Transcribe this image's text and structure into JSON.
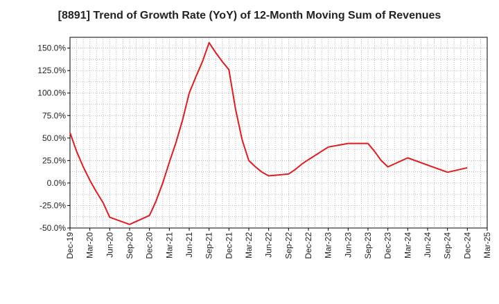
{
  "chart_data": {
    "type": "line",
    "title": "[8891]  Trend of Growth Rate (YoY) of 12-Month Moving Sum of Revenues",
    "xlabel": "",
    "ylabel": "",
    "x_ticks": [
      "Dec-19",
      "Mar-20",
      "Jun-20",
      "Sep-20",
      "Dec-20",
      "Mar-21",
      "Jun-21",
      "Sep-21",
      "Dec-21",
      "Mar-22",
      "Jun-22",
      "Sep-22",
      "Dec-22",
      "Mar-23",
      "Jun-23",
      "Sep-23",
      "Dec-23",
      "Mar-24",
      "Jun-24",
      "Sep-24",
      "Dec-24",
      "Mar-25"
    ],
    "y_ticks": [
      "150.0%",
      "125.0%",
      "100.0%",
      "75.0%",
      "50.0%",
      "25.0%",
      "0.0%",
      "-25.0%",
      "-50.0%"
    ],
    "y_tick_values": [
      150,
      125,
      100,
      75,
      50,
      25,
      0,
      -25,
      -50
    ],
    "ylim": [
      -50,
      162
    ],
    "y_unit": "%",
    "grid": true,
    "line_color": "#e31a1c",
    "series": [
      {
        "x": [
          "Dec-19",
          "Jan-20",
          "Feb-20",
          "Mar-20",
          "Apr-20",
          "May-20",
          "Jun-20",
          "Sep-20",
          "Dec-20",
          "Jan-21",
          "Feb-21",
          "Mar-21",
          "Apr-21",
          "May-21",
          "Jun-21",
          "Jul-21",
          "Aug-21",
          "Sep-21",
          "Oct-21",
          "Nov-21",
          "Dec-21",
          "Jan-22",
          "Feb-22",
          "Mar-22",
          "Apr-22",
          "May-22",
          "Jun-22",
          "Sep-22",
          "Oct-22",
          "Nov-22",
          "Dec-22",
          "Mar-23",
          "Jun-23",
          "Sep-23",
          "Oct-23",
          "Nov-23",
          "Dec-23",
          "Mar-24",
          "Jun-24",
          "Sep-24",
          "Dec-24"
        ],
        "values": [
          56,
          35,
          18,
          3,
          -10,
          -22,
          -38,
          -46,
          -36,
          -20,
          0,
          23,
          45,
          70,
          100,
          118,
          135,
          156,
          145,
          135,
          126,
          82,
          48,
          25,
          18,
          12,
          8,
          10,
          15,
          21,
          26,
          40,
          44,
          44,
          35,
          25,
          18,
          28,
          20,
          12,
          17
        ]
      }
    ]
  }
}
